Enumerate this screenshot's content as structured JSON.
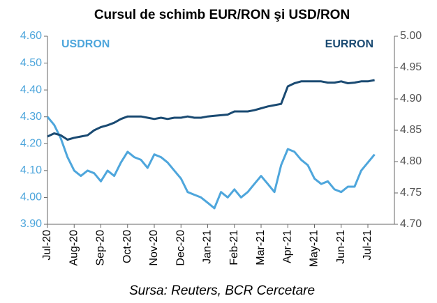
{
  "chart_data": {
    "type": "line",
    "title": "Cursul de schimb EUR/RON şi USD/RON",
    "source": "Sursa: Reuters, BCR Cercetare",
    "categories": [
      "Jul-20",
      null,
      null,
      null,
      "Aug-20",
      null,
      null,
      null,
      "Sep-20",
      null,
      null,
      null,
      "Oct-20",
      null,
      null,
      null,
      "Nov-20",
      null,
      null,
      null,
      "Dec-20",
      null,
      null,
      null,
      "Jan-21",
      null,
      null,
      null,
      "Feb-21",
      null,
      null,
      null,
      "Mar-21",
      null,
      null,
      null,
      "Apr-21",
      null,
      null,
      null,
      "May-21",
      null,
      null,
      null,
      "Jun-21",
      null,
      null,
      null,
      "Jul-21",
      null
    ],
    "series": [
      {
        "name": "USDRON",
        "color": "#4ea6dc",
        "axis": "y",
        "values": [
          4.3,
          4.27,
          4.22,
          4.15,
          4.1,
          4.08,
          4.1,
          4.09,
          4.06,
          4.1,
          4.08,
          4.13,
          4.17,
          4.15,
          4.14,
          4.11,
          4.16,
          4.15,
          4.13,
          4.1,
          4.07,
          4.02,
          4.01,
          4.0,
          3.98,
          3.96,
          4.02,
          4.0,
          4.03,
          4.0,
          4.02,
          4.05,
          4.08,
          4.05,
          4.02,
          4.12,
          4.18,
          4.17,
          4.14,
          4.12,
          4.07,
          4.05,
          4.06,
          4.03,
          4.02,
          4.04,
          4.04,
          4.1,
          4.13,
          4.16
        ]
      },
      {
        "name": "EURRON",
        "color": "#1a4a72",
        "axis": "y2",
        "values": [
          4.84,
          4.845,
          4.842,
          4.835,
          4.838,
          4.84,
          4.842,
          4.85,
          4.855,
          4.858,
          4.862,
          4.868,
          4.872,
          4.872,
          4.872,
          4.87,
          4.868,
          4.87,
          4.868,
          4.87,
          4.87,
          4.872,
          4.87,
          4.87,
          4.872,
          4.873,
          4.874,
          4.875,
          4.88,
          4.88,
          4.88,
          4.882,
          4.885,
          4.888,
          4.89,
          4.892,
          4.92,
          4.925,
          4.928,
          4.928,
          4.928,
          4.928,
          4.926,
          4.926,
          4.928,
          4.925,
          4.926,
          4.928,
          4.928,
          4.93
        ]
      }
    ],
    "ylim": [
      3.9,
      4.6
    ],
    "yticks": [
      {
        "value": 3.9,
        "label": "3.90"
      },
      {
        "value": 4.0,
        "label": "4.00"
      },
      {
        "value": 4.1,
        "label": "4.10"
      },
      {
        "value": 4.2,
        "label": "4.20"
      },
      {
        "value": 4.3,
        "label": "4.30"
      },
      {
        "value": 4.4,
        "label": "4.40"
      },
      {
        "value": 4.5,
        "label": "4.50"
      },
      {
        "value": 4.6,
        "label": "4.60"
      }
    ],
    "y2lim": [
      4.7,
      5.0
    ],
    "y2ticks": [
      {
        "value": 4.7,
        "label": "4.70"
      },
      {
        "value": 4.75,
        "label": "4.75"
      },
      {
        "value": 4.8,
        "label": "4.80"
      },
      {
        "value": 4.85,
        "label": "4.85"
      },
      {
        "value": 4.9,
        "label": "4.90"
      },
      {
        "value": 4.95,
        "label": "4.95"
      },
      {
        "value": 5.0,
        "label": "5.00"
      }
    ],
    "grid": false
  }
}
